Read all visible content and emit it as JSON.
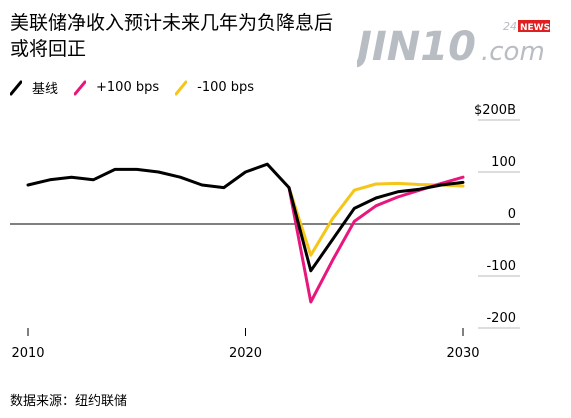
{
  "header": {
    "title": "美联储净收入预计未来几年为负降息后或将回正"
  },
  "logo": {
    "text": "JIN10",
    "suffix": ".com",
    "badge_num": "24",
    "badge_news": "NEWS"
  },
  "footer": {
    "source": "数据来源：纽约联储"
  },
  "chart_data": {
    "type": "line",
    "title": "美联储净收入预计未来几年为负降息后或将回正",
    "xlabel": "",
    "ylabel": "",
    "xlim": [
      2010,
      2030
    ],
    "ylim": [
      -200,
      200
    ],
    "x_ticks": [
      "2010",
      "2020",
      "2030"
    ],
    "y_ticks": [
      "$200B",
      "100",
      "0",
      "-100",
      "-200"
    ],
    "grid": "horizontal",
    "legend_position": "top-left",
    "series": [
      {
        "name": "基线",
        "color": "#000000",
        "points": [
          [
            2010,
            75
          ],
          [
            2011,
            85
          ],
          [
            2012,
            90
          ],
          [
            2013,
            85
          ],
          [
            2014,
            105
          ],
          [
            2015,
            105
          ],
          [
            2016,
            100
          ],
          [
            2017,
            90
          ],
          [
            2018,
            75
          ],
          [
            2019,
            70
          ],
          [
            2020,
            100
          ],
          [
            2021,
            115
          ],
          [
            2022,
            70
          ],
          [
            2023,
            -90
          ],
          [
            2024,
            -30
          ],
          [
            2025,
            30
          ],
          [
            2026,
            50
          ],
          [
            2027,
            62
          ],
          [
            2028,
            67
          ],
          [
            2029,
            75
          ],
          [
            2030,
            80
          ]
        ]
      },
      {
        "name": "+100 bps",
        "color": "#e8177d",
        "points": [
          [
            2022,
            70
          ],
          [
            2023,
            -150
          ],
          [
            2024,
            -70
          ],
          [
            2025,
            5
          ],
          [
            2026,
            35
          ],
          [
            2027,
            52
          ],
          [
            2028,
            65
          ],
          [
            2029,
            78
          ],
          [
            2030,
            90
          ]
        ]
      },
      {
        "name": "-100 bps",
        "color": "#f5c518",
        "points": [
          [
            2022,
            70
          ],
          [
            2023,
            -60
          ],
          [
            2024,
            10
          ],
          [
            2025,
            65
          ],
          [
            2026,
            77
          ],
          [
            2027,
            78
          ],
          [
            2028,
            76
          ],
          [
            2029,
            75
          ],
          [
            2030,
            73
          ]
        ]
      }
    ]
  }
}
